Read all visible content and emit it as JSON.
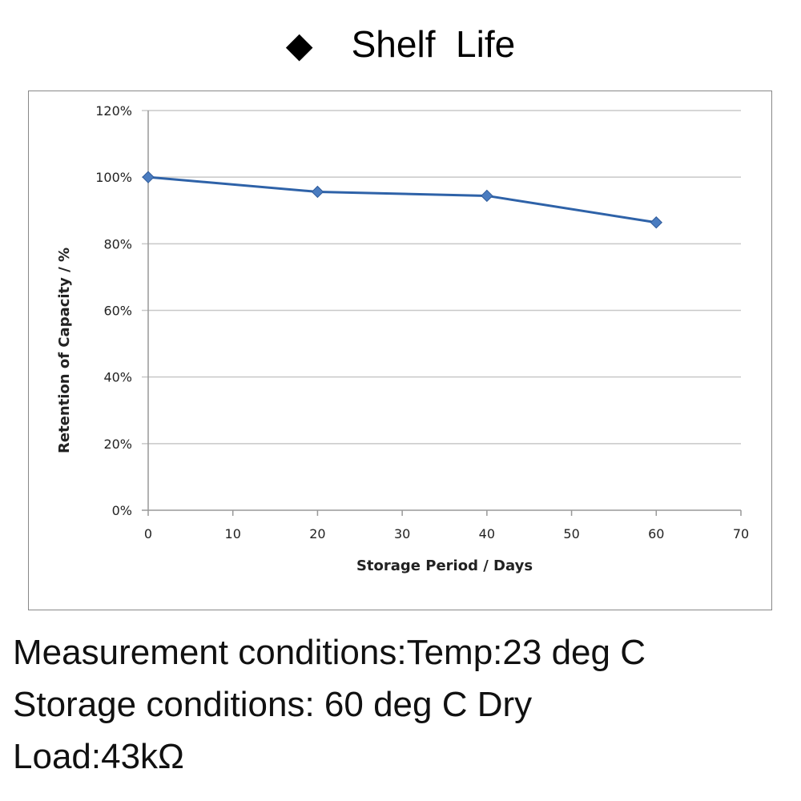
{
  "title": {
    "marker_icon": "diamond-icon",
    "marker": "◆",
    "text": "Shelf  Life"
  },
  "chart_data": {
    "type": "line",
    "title": "Shelf  Life",
    "xlabel": "Storage Period / Days",
    "ylabel": "Retention of Capacity / %",
    "xlim": [
      0,
      70
    ],
    "ylim": [
      0,
      120
    ],
    "xticks": [
      0,
      10,
      20,
      30,
      40,
      50,
      60,
      70
    ],
    "yticks": [
      "0%",
      "20%",
      "40%",
      "60%",
      "80%",
      "100%",
      "120%"
    ],
    "grid": "horizontal",
    "marker": "diamond",
    "color": "#2e62a8",
    "x": [
      0,
      20,
      40,
      60
    ],
    "y": [
      100,
      95.6,
      94.4,
      86.4
    ]
  },
  "conditions": [
    "Measurement conditions:Temp:23 deg C",
    "Storage conditions: 60 deg C Dry",
    "Load:43kΩ"
  ]
}
